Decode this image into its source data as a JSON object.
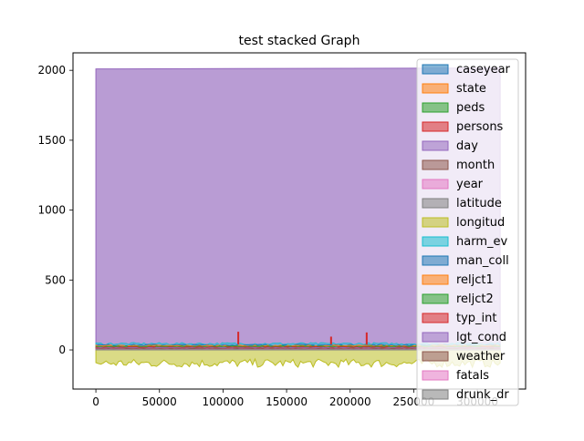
{
  "chart_data": {
    "type": "area",
    "title": "test stacked Graph",
    "xlabel": "",
    "ylabel": "",
    "xlim": [
      -18000,
      338000
    ],
    "ylim": [
      -280,
      2125
    ],
    "x_ticks": [
      0,
      50000,
      100000,
      150000,
      200000,
      250000,
      300000
    ],
    "x_tick_labels": [
      "0",
      "50000",
      "100000",
      "150000",
      "200000",
      "250000",
      "300000"
    ],
    "y_ticks": [
      0,
      500,
      1000,
      1500,
      2000
    ],
    "y_tick_labels": [
      "0",
      "500",
      "1000",
      "1500",
      "2000"
    ],
    "grid": false,
    "legend_position": "top-right",
    "x_range": [
      0,
      318000
    ],
    "series": [
      {
        "name": "caseyear",
        "color": "#1f77b4",
        "level": 0
      },
      {
        "name": "state",
        "color": "#ff7f0e",
        "level": 0
      },
      {
        "name": "peds",
        "color": "#2ca02c",
        "level": 0
      },
      {
        "name": "persons",
        "color": "#d62728",
        "level": 2
      },
      {
        "name": "day",
        "color": "#9467bd",
        "level": 2010
      },
      {
        "name": "month",
        "color": "#8c564b",
        "level": 5
      },
      {
        "name": "year",
        "color": "#e377c2",
        "level": 0
      },
      {
        "name": "latitude",
        "color": "#7f7f7f",
        "level": 10
      },
      {
        "name": "longitud",
        "color": "#bcbd22",
        "level": -95
      },
      {
        "name": "harm_ev",
        "color": "#17becf",
        "level": 45
      },
      {
        "name": "man_coll",
        "color": "#1f77b4",
        "level": 35
      },
      {
        "name": "reljct1",
        "color": "#ff7f0e",
        "level": 30
      },
      {
        "name": "reljct2",
        "color": "#2ca02c",
        "level": 25
      },
      {
        "name": "typ_int",
        "color": "#d62728",
        "level": 20
      },
      {
        "name": "lgt_cond",
        "color": "#9467bd",
        "level": 15
      },
      {
        "name": "weather",
        "color": "#8c564b",
        "level": 10
      },
      {
        "name": "fatals",
        "color": "#e377c2",
        "level": 5
      },
      {
        "name": "drunk_dr",
        "color": "#7f7f7f",
        "level": 3
      }
    ],
    "spikes": [
      {
        "x": 112000,
        "y": 130
      },
      {
        "x": 185000,
        "y": 95
      },
      {
        "x": 213000,
        "y": 125
      }
    ]
  }
}
